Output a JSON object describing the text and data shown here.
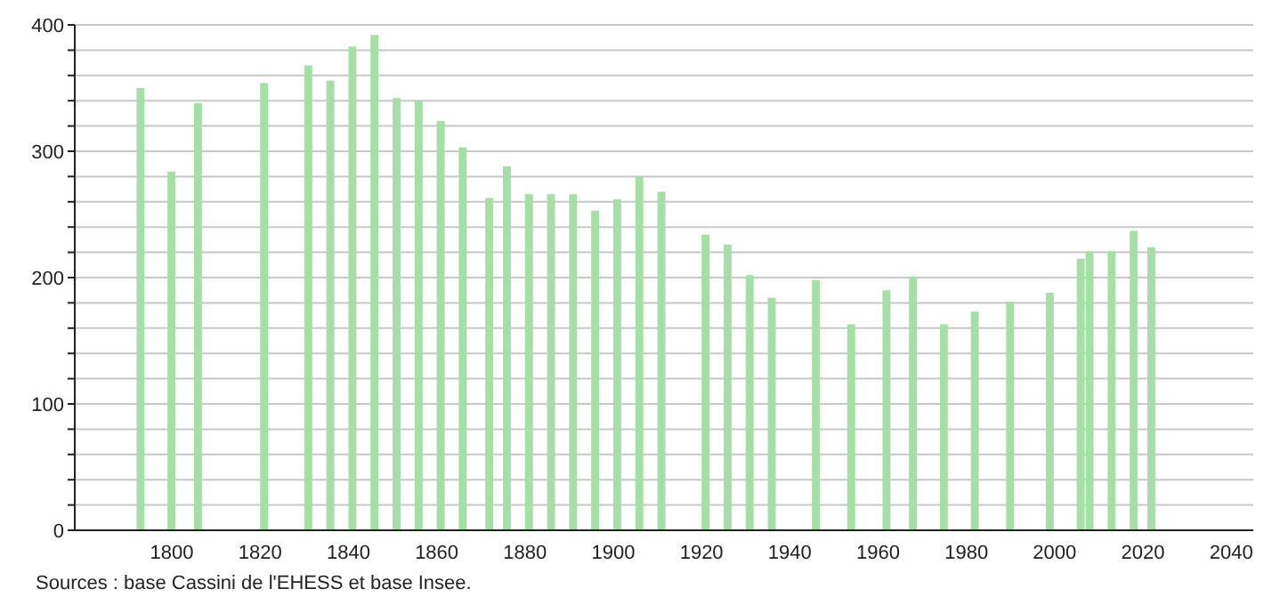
{
  "chart_data": {
    "type": "bar",
    "x": [
      1793,
      1800,
      1806,
      1821,
      1831,
      1836,
      1841,
      1846,
      1851,
      1856,
      1861,
      1866,
      1872,
      1876,
      1881,
      1886,
      1891,
      1896,
      1901,
      1906,
      1911,
      1921,
      1926,
      1931,
      1936,
      1946,
      1954,
      1962,
      1968,
      1975,
      1982,
      1990,
      1999,
      2006,
      2008,
      2013,
      2018,
      2022
    ],
    "values": [
      350,
      284,
      338,
      354,
      368,
      356,
      383,
      392,
      342,
      340,
      324,
      303,
      263,
      288,
      266,
      266,
      266,
      253,
      262,
      280,
      268,
      234,
      226,
      202,
      184,
      198,
      163,
      190,
      201,
      163,
      173,
      181,
      188,
      215,
      221,
      221,
      237,
      224
    ],
    "color": "#a6dfa6",
    "xlim": [
      1778,
      2045
    ],
    "xticks": [
      1800,
      1820,
      1840,
      1860,
      1880,
      1900,
      1920,
      1940,
      1960,
      1980,
      2000,
      2020,
      2040
    ],
    "ylim": [
      0,
      400
    ],
    "yticks": [
      0,
      {
        "value": 20,
        "label": null
      },
      {
        "value": 40,
        "label": null
      },
      {
        "value": 60,
        "label": null
      },
      {
        "value": 80,
        "label": null
      },
      100,
      {
        "value": 120,
        "label": null
      },
      {
        "value": 140,
        "label": null
      },
      {
        "value": 160,
        "label": null
      },
      {
        "value": 180,
        "label": null
      },
      200,
      {
        "value": 220,
        "label": null
      },
      {
        "value": 240,
        "label": null
      },
      {
        "value": 260,
        "label": null
      },
      {
        "value": 280,
        "label": null
      },
      300,
      {
        "value": 320,
        "label": null
      },
      {
        "value": 340,
        "label": null
      },
      {
        "value": 360,
        "label": null
      },
      {
        "value": 380,
        "label": null
      },
      400
    ],
    "grid": "y",
    "annotations": [
      "Sources : base Cassini de l'EHESS et base Insee."
    ]
  }
}
